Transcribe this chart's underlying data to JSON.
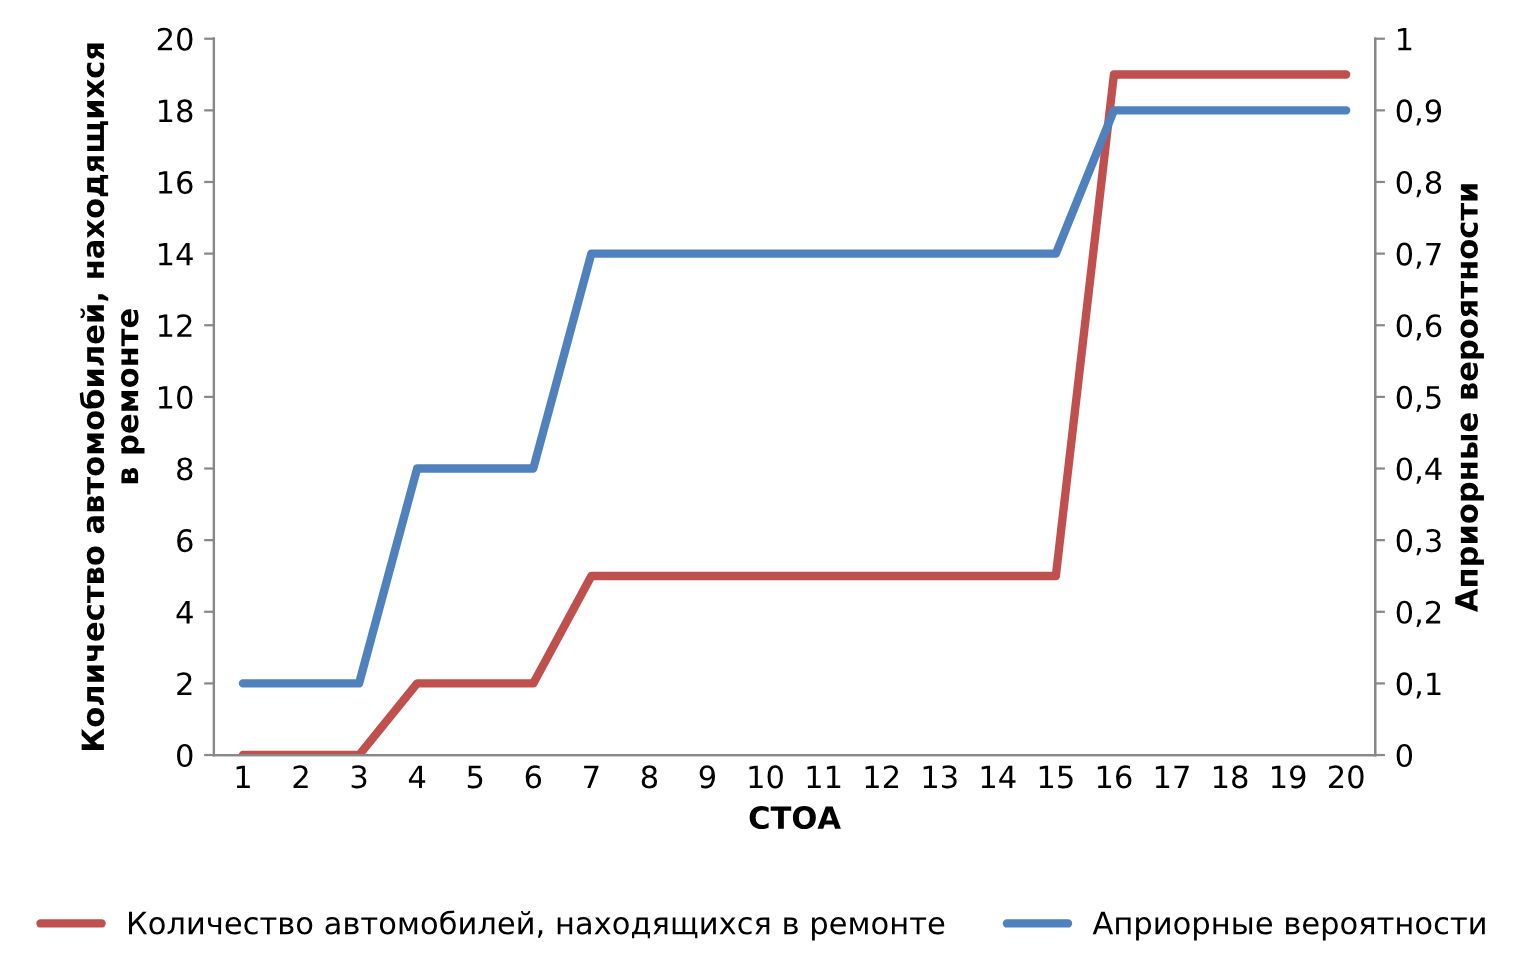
{
  "chart_data": {
    "type": "line",
    "xlabel": "СТОА",
    "ylabel": "Количество автомобилей, находящихся\nв ремонте",
    "y2label": "Априорные вероятности",
    "categories": [
      "1",
      "2",
      "3",
      "4",
      "5",
      "6",
      "7",
      "8",
      "9",
      "10",
      "11",
      "12",
      "13",
      "14",
      "15",
      "16",
      "17",
      "18",
      "19",
      "20"
    ],
    "series": [
      {
        "name": "Количество автомобилей, находящихся в ремонте",
        "color": "#c0504d",
        "values": [
          0,
          0,
          0,
          2,
          2,
          2,
          5,
          5,
          5,
          5,
          5,
          5,
          5,
          5,
          5,
          19,
          19,
          19,
          19,
          19
        ]
      },
      {
        "name": "Априорные вероятности",
        "color": "#4f81bd",
        "axis": "y2",
        "values": [
          0.1,
          0.1,
          0.1,
          0.4,
          0.4,
          0.4,
          0.7,
          0.7,
          0.7,
          0.7,
          0.7,
          0.7,
          0.7,
          0.7,
          0.7,
          0.9,
          0.9,
          0.9,
          0.9,
          0.9
        ]
      }
    ],
    "ylim": [
      0,
      20
    ],
    "yticks": [
      0,
      2,
      4,
      6,
      8,
      10,
      12,
      14,
      16,
      18,
      20
    ],
    "y2lim": [
      0,
      1
    ],
    "y2ticks": [
      0,
      {
        "value": 0.1,
        "label": "0,1"
      },
      {
        "value": 0.2,
        "label": "0,2"
      },
      {
        "value": 0.3,
        "label": "0,3"
      },
      {
        "value": 0.4,
        "label": "0,4"
      },
      {
        "value": 0.5,
        "label": "0,5"
      },
      {
        "value": 0.6,
        "label": "0,6"
      },
      {
        "value": 0.7,
        "label": "0,7"
      },
      {
        "value": 0.8,
        "label": "0,8"
      },
      {
        "value": 0.9,
        "label": "0,9"
      },
      1
    ],
    "grid": false,
    "legend": "bottom",
    "marker": "none",
    "line_style": "solid"
  }
}
